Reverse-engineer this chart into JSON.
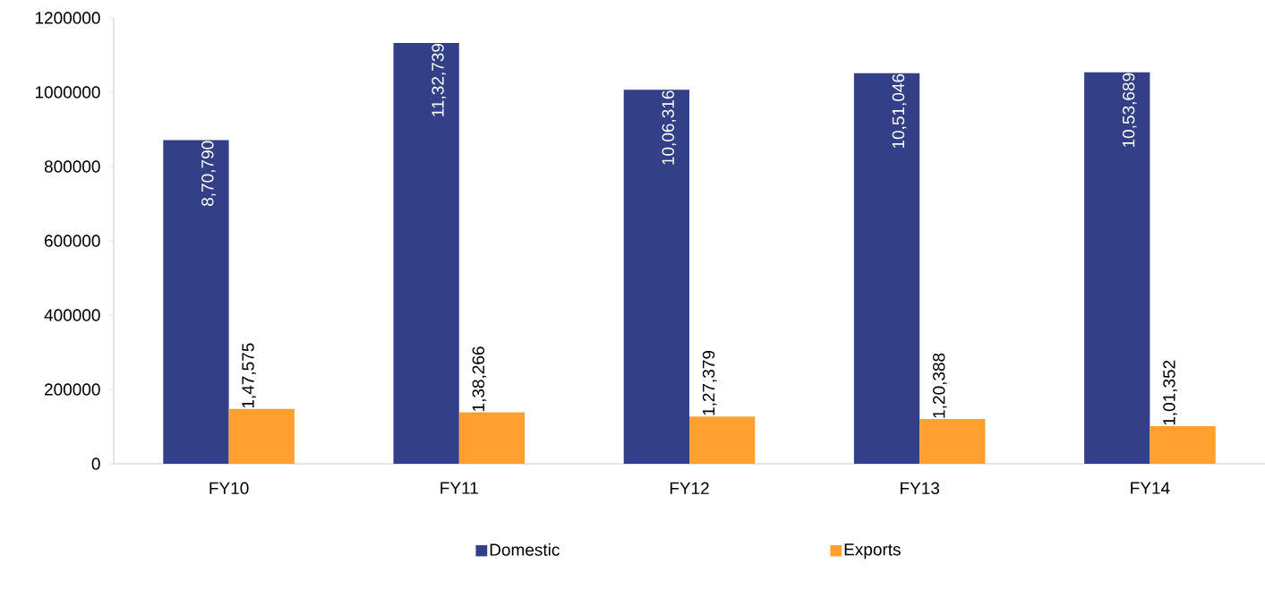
{
  "chart_data": {
    "type": "bar",
    "categories": [
      "FY10",
      "FY11",
      "FY12",
      "FY13",
      "FY14"
    ],
    "series": [
      {
        "name": "Domestic",
        "color": "#333f87",
        "values": [
          870790,
          1132739,
          1006316,
          1051046,
          1053689
        ],
        "value_labels": [
          "8,70,790",
          "11,32,739",
          "10,06,316",
          "10,51,046",
          "10,53,689"
        ]
      },
      {
        "name": "Exports",
        "color": "#ffa031",
        "values": [
          147575,
          138266,
          127379,
          120388,
          101352
        ],
        "value_labels": [
          "1,47,575",
          "1,38,266",
          "1,27,379",
          "1,20,388",
          "1,01,352"
        ]
      }
    ],
    "ylim": [
      0,
      1200000
    ],
    "yticks": [
      0,
      200000,
      400000,
      600000,
      800000,
      1000000,
      1200000
    ],
    "legend": "bottom"
  }
}
